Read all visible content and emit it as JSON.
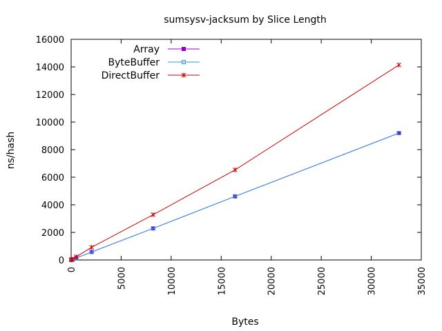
{
  "chart_data": {
    "type": "line",
    "title": "sumsysv-jacksum by Slice Length",
    "xlabel": "Bytes",
    "ylabel": "ns/hash",
    "xlim": [
      0,
      35000
    ],
    "ylim": [
      0,
      16000
    ],
    "xticks": [
      0,
      5000,
      10000,
      15000,
      20000,
      25000,
      30000,
      35000
    ],
    "yticks": [
      0,
      2000,
      4000,
      6000,
      8000,
      10000,
      12000,
      14000,
      16000
    ],
    "grid": false,
    "legend_position": "top-left",
    "x": [
      8,
      32,
      128,
      512,
      2048,
      8192,
      16384,
      32768
    ],
    "series": [
      {
        "name": "Array",
        "color": "#9400d3",
        "marker": "square-filled",
        "values": [
          3,
          8,
          30,
          145,
          580,
          2290,
          4610,
          9200
        ]
      },
      {
        "name": "ByteBuffer",
        "color": "#3399dd",
        "marker": "square-open",
        "values": [
          4,
          9,
          30,
          145,
          580,
          2290,
          4610,
          9200
        ]
      },
      {
        "name": "DirectBuffer",
        "color": "#cc0000",
        "marker": "star",
        "values": [
          5,
          14,
          55,
          230,
          920,
          3280,
          6530,
          14140
        ]
      }
    ]
  }
}
